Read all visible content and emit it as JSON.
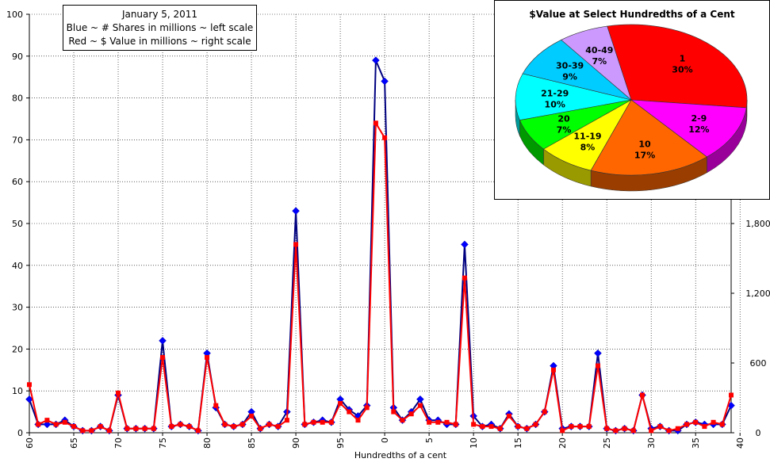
{
  "chart_data": [
    {
      "type": "line",
      "xlabel": "Hundredths of a cent",
      "legend": {
        "date": "January 5, 2011",
        "line1": "Blue ~ # Shares in millions ~ left scale",
        "line2": "Red ~ $ Value in millions ~ right scale"
      },
      "x_ticks": [
        "60",
        "65",
        "70",
        "75",
        "80",
        "85",
        "90",
        "95",
        "0",
        "5",
        "10",
        "15",
        "20",
        "25",
        "30",
        "35",
        "40"
      ],
      "left_axis": {
        "ylim": [
          0,
          100
        ],
        "ticks": [
          "0",
          "10",
          "20",
          "30",
          "40",
          "50",
          "60",
          "70",
          "80",
          "90",
          "100"
        ]
      },
      "right_axis": {
        "ylim": [
          0,
          3600
        ],
        "ticks": [
          "0",
          "600",
          "1,200",
          "1,800"
        ]
      },
      "series": [
        {
          "name": "# Shares in millions",
          "color": "#0000ff",
          "axis": "left",
          "values": [
            8,
            2,
            2,
            2,
            3,
            1.5,
            0.5,
            0.5,
            1.5,
            0.5,
            9,
            1,
            1,
            1,
            1,
            22,
            1.5,
            2,
            1.5,
            0.5,
            19,
            6,
            2,
            1.5,
            2,
            5,
            1,
            2,
            1.5,
            5,
            53,
            2,
            2.5,
            3,
            2.5,
            8,
            5.5,
            4,
            6.5,
            89,
            84,
            6,
            3,
            5,
            8,
            3,
            3,
            2,
            2,
            45,
            4,
            1.5,
            2,
            1,
            4.5,
            1.5,
            1,
            2,
            5,
            16,
            1,
            1.5,
            1.5,
            1.5,
            19,
            1,
            0.5,
            1,
            0.5,
            9,
            1,
            1.5,
            0.5,
            0.5,
            2,
            2.5,
            2,
            2,
            2,
            6.5
          ]
        },
        {
          "name": "$ Value in millions",
          "color": "#ff0000",
          "axis": "left",
          "values": [
            11.5,
            2,
            3,
            2,
            2.5,
            1.5,
            0.5,
            0.5,
            1.5,
            0.5,
            9.5,
            1,
            1,
            1,
            1,
            18,
            1.5,
            2,
            1.5,
            0.5,
            18,
            6.5,
            2,
            1.5,
            2,
            4,
            1,
            2,
            1.5,
            3,
            45,
            2,
            2.5,
            2.5,
            2.5,
            7,
            5,
            3,
            6,
            74,
            70.5,
            5,
            3,
            4.5,
            6.5,
            2.5,
            2.5,
            2.5,
            2,
            37,
            2,
            1.5,
            1.5,
            1,
            4,
            1.5,
            1,
            2,
            5,
            15,
            0.5,
            1.5,
            1.5,
            1.5,
            16,
            1,
            0.5,
            1,
            0.5,
            9,
            0.5,
            1.5,
            0.5,
            1,
            2,
            2.5,
            1.5,
            2.5,
            2,
            9
          ]
        }
      ]
    },
    {
      "type": "pie",
      "title": "$Value at Select Hundredths of a Cent",
      "slices": [
        {
          "label": "1",
          "percent_text": "30%",
          "value": 30,
          "color": "#ff0000"
        },
        {
          "label": "2-9",
          "percent_text": "12%",
          "value": 12,
          "color": "#ff00ff"
        },
        {
          "label": "10",
          "percent_text": "17%",
          "value": 17,
          "color": "#ff6600"
        },
        {
          "label": "11-19",
          "percent_text": "8%",
          "value": 8,
          "color": "#ffff00"
        },
        {
          "label": "20",
          "percent_text": "7%",
          "value": 7,
          "color": "#00ff00"
        },
        {
          "label": "21-29",
          "percent_text": "10%",
          "value": 10,
          "color": "#00ffff"
        },
        {
          "label": "30-39",
          "percent_text": "9%",
          "value": 9,
          "color": "#00ccff"
        },
        {
          "label": "40-49",
          "percent_text": "7%",
          "value": 7,
          "color": "#cc99ff"
        }
      ]
    }
  ]
}
